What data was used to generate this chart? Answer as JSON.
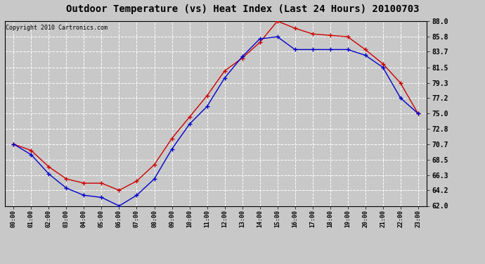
{
  "title": "Outdoor Temperature (vs) Heat Index (Last 24 Hours) 20100703",
  "copyright": "Copyright 2010 Cartronics.com",
  "hours": [
    "00:00",
    "01:00",
    "02:00",
    "03:00",
    "04:00",
    "05:00",
    "06:00",
    "07:00",
    "08:00",
    "09:00",
    "10:00",
    "11:00",
    "12:00",
    "13:00",
    "14:00",
    "15:00",
    "16:00",
    "17:00",
    "18:00",
    "19:00",
    "20:00",
    "21:00",
    "22:00",
    "23:00"
  ],
  "red_temp": [
    70.7,
    69.8,
    67.5,
    65.8,
    65.2,
    65.2,
    64.2,
    65.5,
    67.8,
    71.5,
    74.5,
    77.5,
    81.0,
    82.8,
    85.0,
    88.0,
    87.0,
    86.2,
    86.0,
    85.8,
    84.0,
    82.0,
    79.3,
    75.0
  ],
  "blue_temp": [
    70.7,
    69.2,
    66.5,
    64.5,
    63.5,
    63.2,
    62.0,
    63.5,
    65.8,
    70.0,
    73.5,
    76.0,
    80.0,
    83.0,
    85.5,
    85.8,
    84.0,
    84.0,
    84.0,
    84.0,
    83.2,
    81.5,
    77.2,
    75.0
  ],
  "ylim": [
    62.0,
    88.0
  ],
  "yticks": [
    62.0,
    64.2,
    66.3,
    68.5,
    70.7,
    72.8,
    75.0,
    77.2,
    79.3,
    81.5,
    83.7,
    85.8,
    88.0
  ],
  "red_color": "#cc0000",
  "blue_color": "#0000cc",
  "bg_color": "#c8c8c8",
  "plot_bg_color": "#c8c8c8",
  "grid_color": "#ffffff",
  "title_fontsize": 10,
  "copyright_fontsize": 6
}
